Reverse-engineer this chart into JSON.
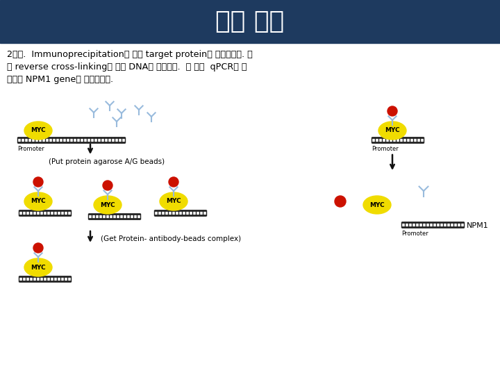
{
  "title": "실험 방법",
  "title_bg_color": "#1e3a5f",
  "title_text_color": "#ffffff",
  "bg_color": "#ffffff",
  "body_text_line1": "2일차.  Immunoprecipitation을 통해 target protein을 침전시킨다. 이",
  "body_text_line2": "후 reverse cross-linking을 통해 DNA만 얻어낸다.  그 이후  qPCR을 진",
  "body_text_line3": "행하여 NPM1 gene을 증폭시킨다.",
  "npm1_label": "NPM1",
  "promoter_label": "Promoter",
  "put_beads_label": "(Put protein agarose A/G beads)",
  "get_complex_label": "(Get Protein- antibody-beads complex)",
  "myc_color": "#f0dc00",
  "myc_text": "MYC",
  "red_bead_color": "#cc1100",
  "antibody_color": "#99bbdd",
  "dna_color": "#222222",
  "arrow_color": "#111111"
}
